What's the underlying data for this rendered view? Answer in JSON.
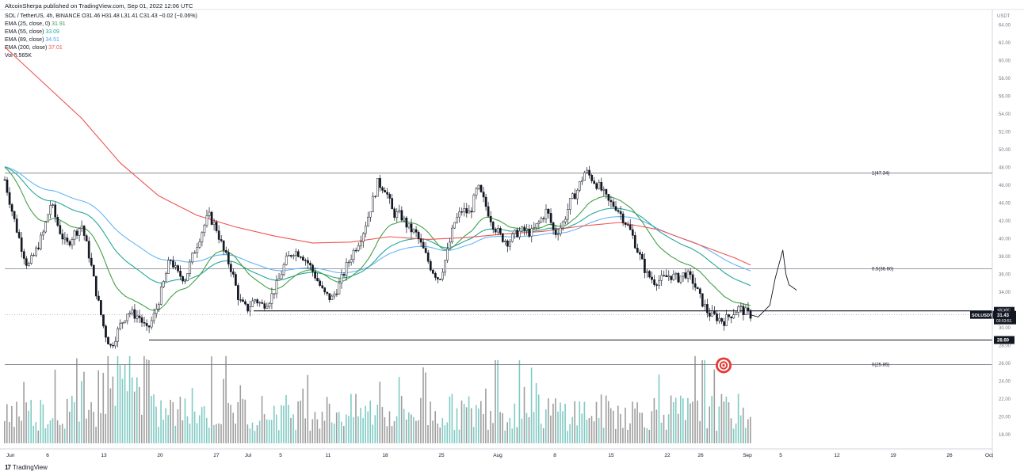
{
  "header": {
    "publisher": "AltcoinSherpa published on TradingView.com, Sep 01, 2022 12:06 UTC",
    "symbol_line": {
      "symbol": "SOL / TetherUS, 4h, BINANCE",
      "ohlc": "O31.46 H31.48 L31.41 C31.43 −0.02 (−0.06%)"
    },
    "indicators": [
      {
        "label": "EMA (25, close, 0)",
        "value": "31.91",
        "color": "#3a9a52"
      },
      {
        "label": "EMA (55, close)",
        "value": "33.09",
        "color": "#26a69a"
      },
      {
        "label": "EMA (89, close)",
        "value": "34.51",
        "color": "#42a5f5"
      },
      {
        "label": "EMA (200, close)",
        "value": "37.01",
        "color": "#ef5350"
      },
      {
        "label": "Vol",
        "value": "5.565K",
        "color": "#26a69a"
      }
    ]
  },
  "brand": {
    "logo": "17",
    "name": "TradingView"
  },
  "colors": {
    "candle": "#131722",
    "ema25": "#43a047",
    "ema55": "#26a69a",
    "ema89": "#64b5f6",
    "ema200": "#ef5350",
    "vol_up": "#80cbc4",
    "vol_down": "#9e9e9e",
    "target": "#e53935"
  },
  "chart_data": {
    "type": "candlestick",
    "currency": "USDT",
    "ylim": [
      17,
      65
    ],
    "y_ticks": [
      "64.00",
      "62.00",
      "60.00",
      "58.00",
      "56.00",
      "54.00",
      "52.00",
      "50.00",
      "48.00",
      "46.00",
      "44.00",
      "42.00",
      "40.00",
      "38.00",
      "36.00",
      "34.00",
      "32.00",
      "30.00",
      "28.00",
      "26.00",
      "24.00",
      "22.00",
      "20.00",
      "18.00"
    ],
    "x_ticks": [
      "Jun",
      "6",
      "13",
      "20",
      "27",
      "Jul",
      "5",
      "11",
      "18",
      "25",
      "Aug",
      "8",
      "15",
      "22",
      "26",
      "Sep",
      "5",
      "12",
      "19",
      "26",
      "Oct"
    ],
    "levels": [
      {
        "label": "1(47.34)",
        "value": 47.34,
        "style": "fib"
      },
      {
        "label": "0.5(36.60)",
        "value": 36.6,
        "style": "fib"
      },
      {
        "label": "0(25.85)",
        "value": 25.85,
        "style": "fib"
      },
      {
        "label": "31.87",
        "value": 31.87,
        "style": "support"
      },
      {
        "label": "28.60",
        "value": 28.6,
        "style": "support"
      }
    ],
    "last_price": {
      "symbol": "SOLUSDT",
      "price": "31.43",
      "countdown": "03:53:51"
    },
    "close_series": [
      {
        "t": 0,
        "c": 46.6
      },
      {
        "t": 0.7,
        "c": 44.0
      },
      {
        "t": 1.4,
        "c": 41.5
      },
      {
        "t": 2.2,
        "c": 39.0
      },
      {
        "t": 3,
        "c": 36.8
      },
      {
        "t": 4,
        "c": 38.5
      },
      {
        "t": 5,
        "c": 40.6
      },
      {
        "t": 6,
        "c": 44.0
      },
      {
        "t": 7,
        "c": 41.2
      },
      {
        "t": 8,
        "c": 39.2
      },
      {
        "t": 9,
        "c": 40.5
      },
      {
        "t": 10,
        "c": 41.5
      },
      {
        "t": 11,
        "c": 38.0
      },
      {
        "t": 12,
        "c": 33.5
      },
      {
        "t": 13,
        "c": 29.5
      },
      {
        "t": 13.8,
        "c": 27.8
      },
      {
        "t": 15,
        "c": 30.2
      },
      {
        "t": 16,
        "c": 31.8
      },
      {
        "t": 17.5,
        "c": 31.2
      },
      {
        "t": 18.5,
        "c": 29.6
      },
      {
        "t": 19.5,
        "c": 31.5
      },
      {
        "t": 20.5,
        "c": 34.5
      },
      {
        "t": 21.5,
        "c": 37.8
      },
      {
        "t": 22.5,
        "c": 36.0
      },
      {
        "t": 23.5,
        "c": 35.5
      },
      {
        "t": 24.5,
        "c": 38.2
      },
      {
        "t": 25.5,
        "c": 40.5
      },
      {
        "t": 26.5,
        "c": 42.6
      },
      {
        "t": 27.5,
        "c": 41.2
      },
      {
        "t": 28.5,
        "c": 38.5
      },
      {
        "t": 29.5,
        "c": 36.5
      },
      {
        "t": 30.5,
        "c": 33.0
      },
      {
        "t": 31.5,
        "c": 32.0
      },
      {
        "t": 32.5,
        "c": 33.2
      },
      {
        "t": 33.5,
        "c": 32.5
      },
      {
        "t": 34.5,
        "c": 33.2
      },
      {
        "t": 35.5,
        "c": 35.0
      },
      {
        "t": 36.5,
        "c": 37.4
      },
      {
        "t": 37.5,
        "c": 38.6
      },
      {
        "t": 38.5,
        "c": 38.3
      },
      {
        "t": 39.5,
        "c": 37.2
      },
      {
        "t": 40.5,
        "c": 35.6
      },
      {
        "t": 41.5,
        "c": 33.8
      },
      {
        "t": 42.5,
        "c": 33.2
      },
      {
        "t": 43.5,
        "c": 34.8
      },
      {
        "t": 44.5,
        "c": 37.0
      },
      {
        "t": 45.5,
        "c": 38.8
      },
      {
        "t": 46.5,
        "c": 40.5
      },
      {
        "t": 47.5,
        "c": 43.2
      },
      {
        "t": 48.5,
        "c": 46.2
      },
      {
        "t": 49.5,
        "c": 45.6
      },
      {
        "t": 50.5,
        "c": 42.8
      },
      {
        "t": 51.5,
        "c": 42.6
      },
      {
        "t": 52.5,
        "c": 41.2
      },
      {
        "t": 53.5,
        "c": 40.5
      },
      {
        "t": 54.5,
        "c": 38.6
      },
      {
        "t": 55.5,
        "c": 36.6
      },
      {
        "t": 56.5,
        "c": 35.4
      },
      {
        "t": 57.5,
        "c": 38.2
      },
      {
        "t": 58.5,
        "c": 41.8
      },
      {
        "t": 59.5,
        "c": 43.2
      },
      {
        "t": 60.5,
        "c": 42.8
      },
      {
        "t": 61.5,
        "c": 45.8
      },
      {
        "t": 62.5,
        "c": 43.8
      },
      {
        "t": 63.5,
        "c": 41.6
      },
      {
        "t": 64.5,
        "c": 40.2
      },
      {
        "t": 65.5,
        "c": 39.6
      },
      {
        "t": 66.5,
        "c": 40.6
      },
      {
        "t": 67.5,
        "c": 40.9
      },
      {
        "t": 68.5,
        "c": 40.6
      },
      {
        "t": 69.5,
        "c": 41.8
      },
      {
        "t": 70.5,
        "c": 43.2
      },
      {
        "t": 71.5,
        "c": 40.5
      },
      {
        "t": 72.5,
        "c": 41.5
      },
      {
        "t": 73.5,
        "c": 44.0
      },
      {
        "t": 74.5,
        "c": 45.5
      },
      {
        "t": 75.5,
        "c": 47.6
      },
      {
        "t": 76.5,
        "c": 46.6
      },
      {
        "t": 77.5,
        "c": 45.6
      },
      {
        "t": 78.5,
        "c": 44.1
      },
      {
        "t": 79.5,
        "c": 43.6
      },
      {
        "t": 80.5,
        "c": 42.2
      },
      {
        "t": 81.5,
        "c": 40.6
      },
      {
        "t": 82.5,
        "c": 38.2
      },
      {
        "t": 83.5,
        "c": 36.0
      },
      {
        "t": 84.5,
        "c": 35.2
      },
      {
        "t": 85.5,
        "c": 35.4
      },
      {
        "t": 86.5,
        "c": 35.9
      },
      {
        "t": 87.5,
        "c": 35.5
      },
      {
        "t": 88.5,
        "c": 36.1
      },
      {
        "t": 89.5,
        "c": 35.2
      },
      {
        "t": 90.5,
        "c": 33.2
      },
      {
        "t": 91.5,
        "c": 31.6
      },
      {
        "t": 92.5,
        "c": 31.2
      },
      {
        "t": 93.5,
        "c": 30.7
      },
      {
        "t": 94.5,
        "c": 31.5
      },
      {
        "t": 95.5,
        "c": 32.2
      },
      {
        "t": 96.5,
        "c": 31.6
      },
      {
        "t": 97,
        "c": 31.43
      }
    ],
    "ema200_series": [
      {
        "t": 0,
        "v": 61.5
      },
      {
        "t": 5,
        "v": 57.5
      },
      {
        "t": 10,
        "v": 53.5
      },
      {
        "t": 15,
        "v": 48.5
      },
      {
        "t": 20,
        "v": 44.8
      },
      {
        "t": 25,
        "v": 42.6
      },
      {
        "t": 30,
        "v": 41.3
      },
      {
        "t": 35,
        "v": 40.3
      },
      {
        "t": 40,
        "v": 39.5
      },
      {
        "t": 45,
        "v": 39.6
      },
      {
        "t": 50,
        "v": 40.2
      },
      {
        "t": 55,
        "v": 39.9
      },
      {
        "t": 60,
        "v": 40.1
      },
      {
        "t": 65,
        "v": 40.5
      },
      {
        "t": 70,
        "v": 40.8
      },
      {
        "t": 75,
        "v": 41.4
      },
      {
        "t": 80,
        "v": 41.8
      },
      {
        "t": 85,
        "v": 41.0
      },
      {
        "t": 90,
        "v": 39.4
      },
      {
        "t": 95,
        "v": 37.8
      },
      {
        "t": 97,
        "v": 37.01
      }
    ],
    "projection_path": [
      {
        "t": 97,
        "c": 31.43
      },
      {
        "t": 98,
        "c": 31.2
      },
      {
        "t": 99.5,
        "c": 32.5
      },
      {
        "t": 100.2,
        "c": 35.5
      },
      {
        "t": 101.2,
        "c": 38.7
      },
      {
        "t": 101.6,
        "c": 36.0
      },
      {
        "t": 102,
        "c": 34.8
      },
      {
        "t": 103,
        "c": 34.2
      }
    ],
    "target_level": 25.85,
    "volume_scale_max": 22
  }
}
